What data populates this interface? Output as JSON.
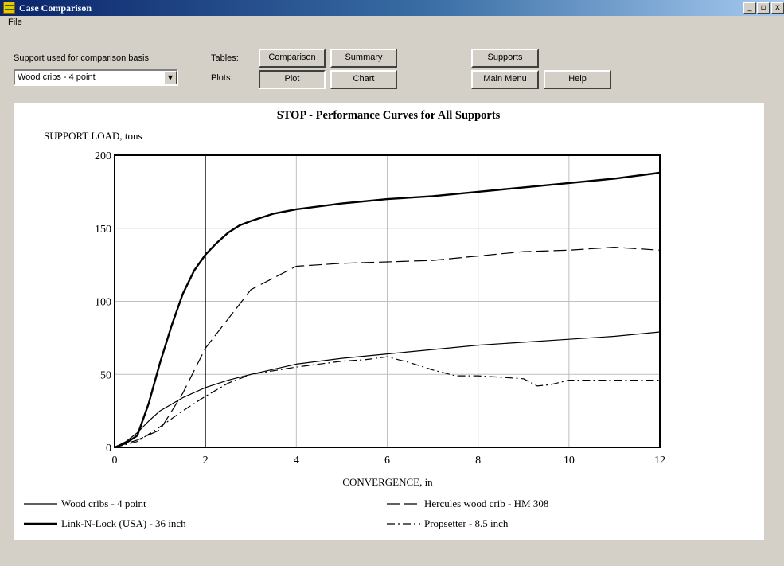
{
  "window": {
    "title": "Case Comparison",
    "minimize_glyph": "_",
    "maximize_glyph": "▫",
    "close_glyph": "x"
  },
  "menu": {
    "file_label": "File"
  },
  "controls": {
    "support_label": "Support used for comparison basis",
    "support_value": "Wood cribs - 4 point",
    "tables_label": "Tables:",
    "plots_label": "Plots:",
    "comparison_button": "Comparison",
    "summary_button": "Summary",
    "plot_button": "Plot",
    "chart_button": "Chart",
    "supports_button": "Supports",
    "main_menu_button": "Main Menu",
    "help_button": "Help"
  },
  "chart_data": {
    "type": "line",
    "title": "STOP - Performance Curves for All Supports",
    "xlabel": "CONVERGENCE, in",
    "ylabel": "SUPPORT LOAD, tons",
    "xlim": [
      0,
      12
    ],
    "ylim": [
      0,
      200
    ],
    "xticks": [
      0,
      2,
      4,
      6,
      8,
      10,
      12
    ],
    "yticks": [
      0,
      50,
      100,
      150,
      200
    ],
    "grid": true,
    "reference_line_x": 2,
    "legend_position": "bottom",
    "series": [
      {
        "name": "Wood cribs - 4 point",
        "style": "solid-thin",
        "color": "#000000",
        "x": [
          0,
          0.25,
          0.5,
          0.75,
          1,
          1.5,
          2,
          2.5,
          3,
          4,
          5,
          6,
          7,
          8,
          9,
          10,
          11,
          12
        ],
        "y": [
          0,
          4,
          10,
          18,
          25,
          34,
          41,
          46,
          50,
          57,
          61,
          64,
          67,
          70,
          72,
          74,
          76,
          79
        ]
      },
      {
        "name": "Link-N-Lock (USA) - 36 inch",
        "style": "solid-thick",
        "color": "#000000",
        "x": [
          0,
          0.25,
          0.5,
          0.75,
          1,
          1.25,
          1.5,
          1.75,
          2,
          2.25,
          2.5,
          2.75,
          3,
          3.5,
          4,
          5,
          6,
          7,
          8,
          9,
          10,
          11,
          12
        ],
        "y": [
          0,
          3,
          8,
          30,
          58,
          83,
          105,
          121,
          132,
          140,
          147,
          152,
          155,
          160,
          163,
          167,
          170,
          172,
          175,
          178,
          181,
          184,
          188
        ]
      },
      {
        "name": "Hercules wood crib - HM 308",
        "style": "long-dash",
        "color": "#000000",
        "x": [
          0,
          0.5,
          1,
          1.5,
          2,
          2.5,
          3,
          3.5,
          4,
          5,
          6,
          7,
          8,
          9,
          10,
          11,
          12
        ],
        "y": [
          0,
          5,
          12,
          37,
          68,
          88,
          108,
          116,
          124,
          126,
          127,
          128,
          131,
          134,
          135,
          137,
          135
        ]
      },
      {
        "name": "Propsetter - 8.5 inch",
        "style": "dash-dot",
        "color": "#000000",
        "x": [
          0,
          0.5,
          1,
          1.5,
          2,
          2.5,
          3,
          4,
          5,
          5.5,
          6,
          6.5,
          7,
          7.5,
          8,
          8.5,
          9,
          9.3,
          9.6,
          10,
          11,
          12
        ],
        "y": [
          0,
          4,
          14,
          25,
          35,
          44,
          50,
          55,
          59,
          60,
          62,
          58,
          53,
          49,
          49,
          48,
          47,
          42,
          43,
          46,
          46,
          46
        ]
      }
    ]
  }
}
